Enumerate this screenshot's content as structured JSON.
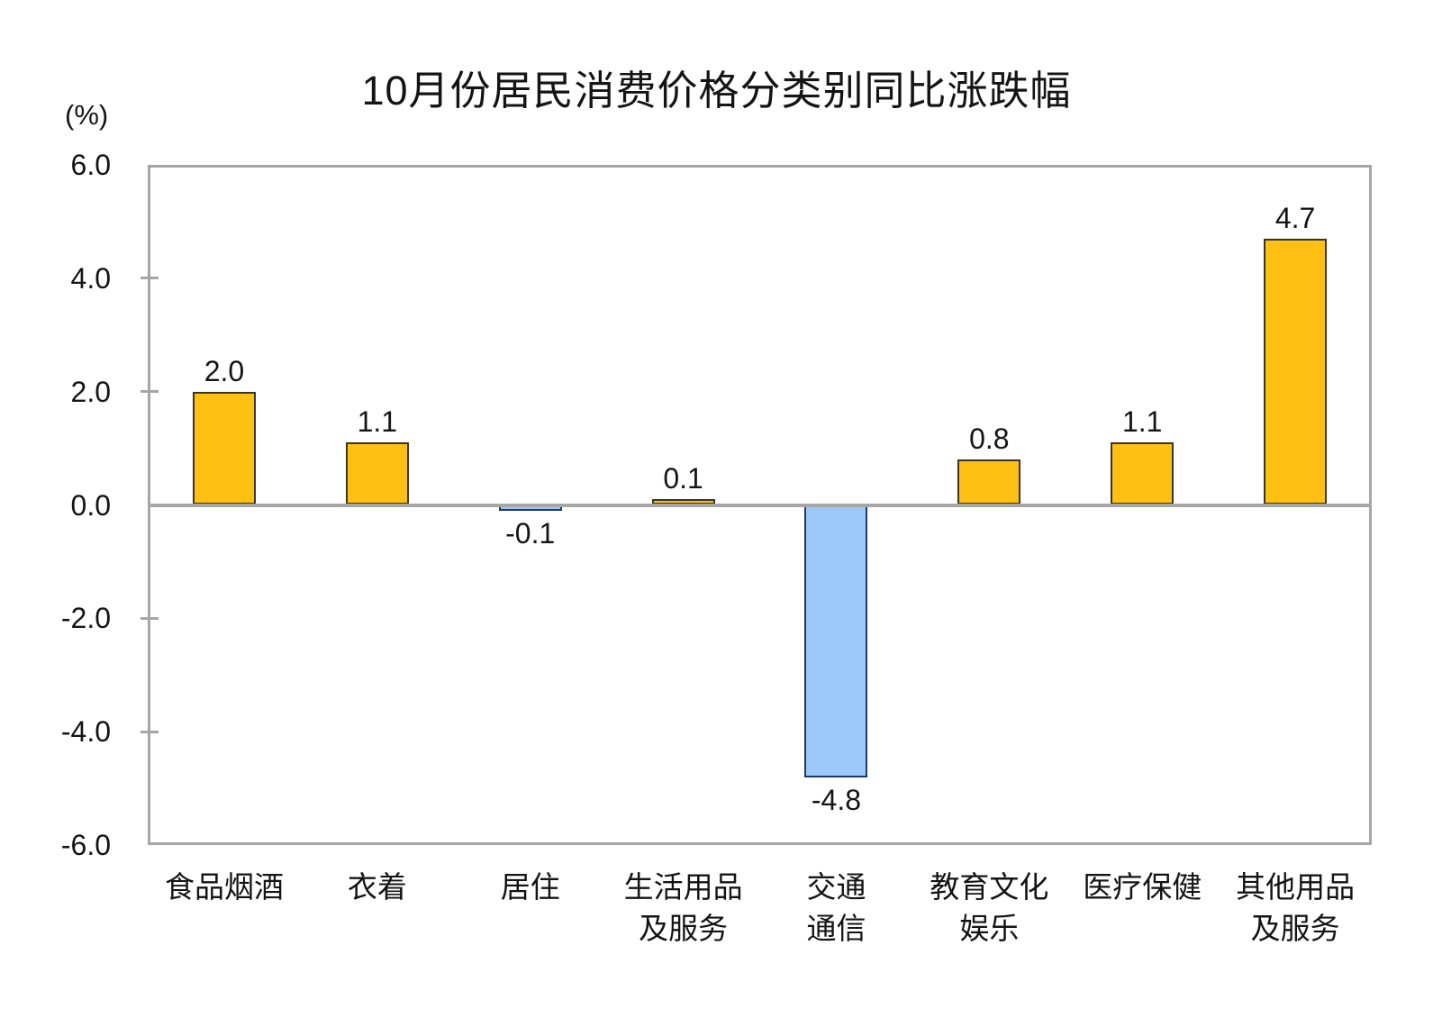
{
  "chart_data": {
    "type": "bar",
    "title": "10月份居民消费价格分类别同比涨跌幅",
    "unit_label": "(%)",
    "categories": [
      [
        "食品烟酒"
      ],
      [
        "衣着"
      ],
      [
        "居住"
      ],
      [
        "生活用品",
        "及服务"
      ],
      [
        "交通",
        "通信"
      ],
      [
        "教育文化",
        "娱乐"
      ],
      [
        "医疗保健"
      ],
      [
        "其他用品",
        "及服务"
      ]
    ],
    "values": [
      2.0,
      1.1,
      -0.1,
      0.1,
      -4.8,
      0.8,
      1.1,
      4.7
    ],
    "data_labels": [
      "2.0",
      "1.1",
      "-0.1",
      "0.1",
      "-4.8",
      "0.8",
      "1.1",
      "4.7"
    ],
    "ylim": [
      -6.0,
      6.0
    ],
    "ytick_interval": 2.0,
    "yticks": [
      "6.0",
      "4.0",
      "2.0",
      "0.0",
      "-2.0",
      "-4.0",
      "-6.0"
    ],
    "grid": false,
    "legend": "none",
    "colors": {
      "positive_fill": "#FDC013",
      "positive_border": "#3A3425",
      "negative_fill": "#9DC9F8",
      "negative_border": "#1F3864",
      "axis": "#A6A6A6",
      "text": "#141414",
      "background": "#FFFFFF"
    }
  }
}
